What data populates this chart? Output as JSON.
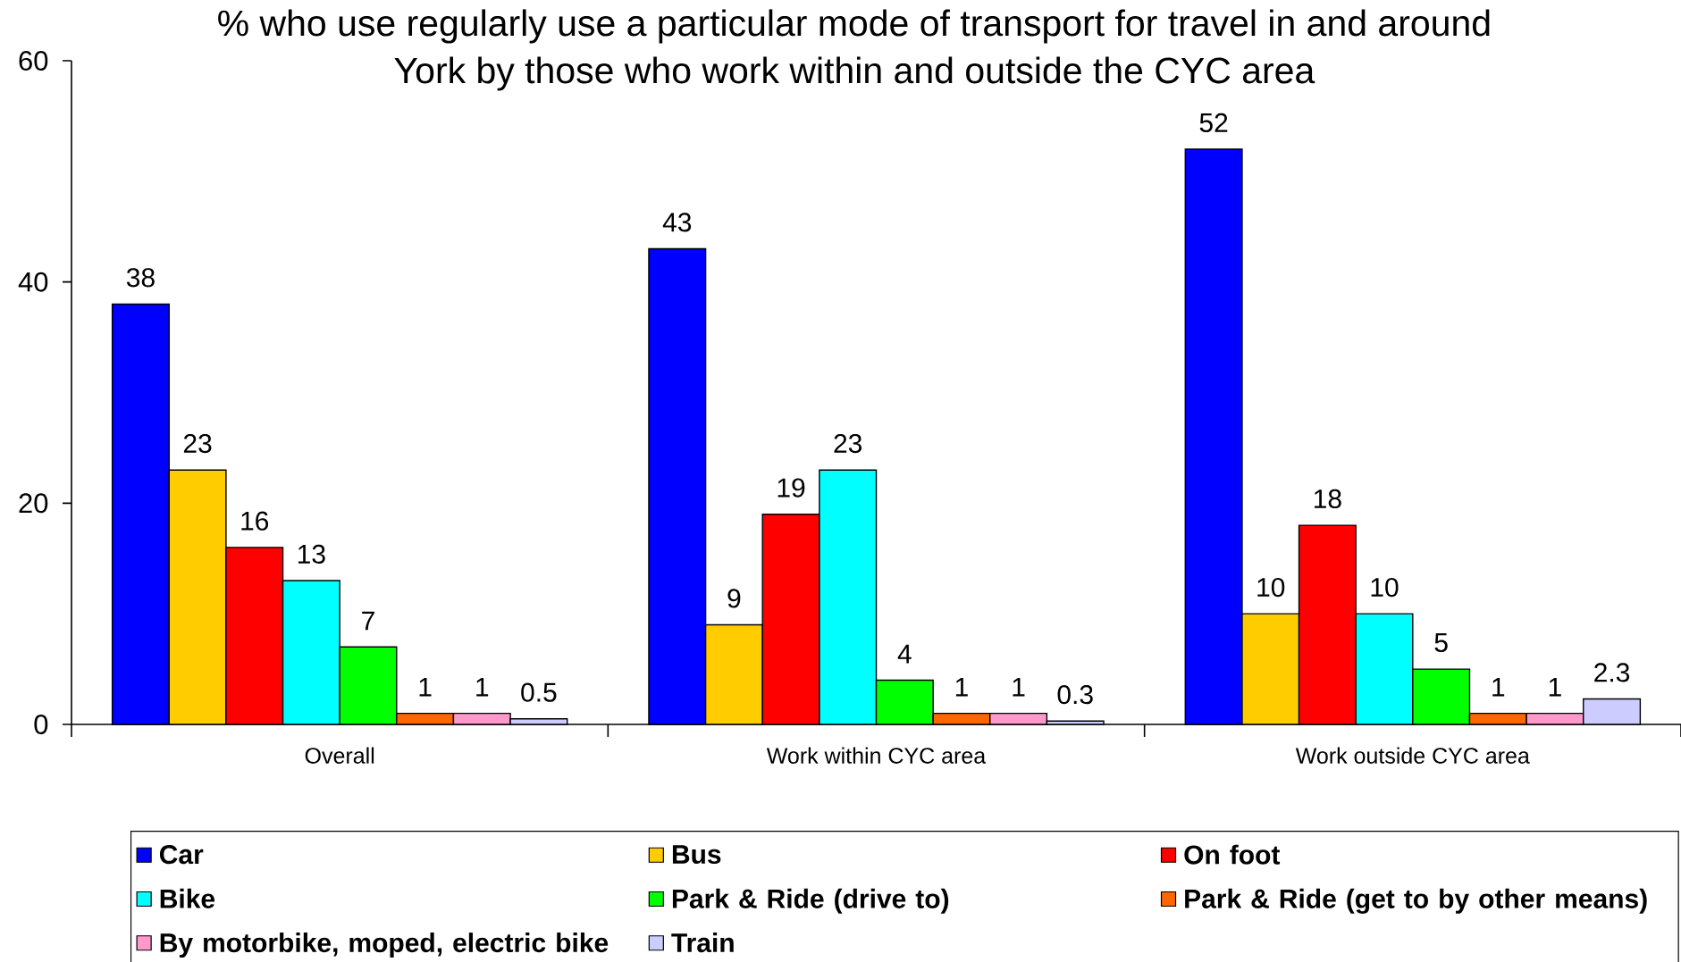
{
  "chart_data": {
    "type": "bar",
    "title": "% who use regularly use a particular mode of transport for travel in and around York by those who work within and outside the CYC area",
    "categories": [
      "Overall",
      "Work within CYC area",
      "Work outside CYC area"
    ],
    "series": [
      {
        "name": "Car",
        "color": "#0000ff",
        "values": [
          38,
          43,
          52
        ]
      },
      {
        "name": "Bus",
        "color": "#ffcc00",
        "values": [
          23,
          9,
          10
        ]
      },
      {
        "name": "On foot",
        "color": "#ff0000",
        "values": [
          16,
          19,
          18
        ]
      },
      {
        "name": "Bike",
        "color": "#00ffff",
        "values": [
          13,
          23,
          10
        ]
      },
      {
        "name": "Park & Ride (drive to)",
        "color": "#00ff00",
        "values": [
          7,
          4,
          5
        ]
      },
      {
        "name": "Park & Ride (get to by other means)",
        "color": "#ff6600",
        "values": [
          1,
          1,
          1
        ]
      },
      {
        "name": "By motorbike, moped, electric bike",
        "color": "#ff99cc",
        "values": [
          1,
          1,
          1
        ]
      },
      {
        "name": "Train",
        "color": "#ccccff",
        "values": [
          0.5,
          0.3,
          2.3
        ]
      }
    ],
    "ylim": [
      0,
      60
    ],
    "yticks": [
      0,
      20,
      40,
      60
    ],
    "data_labels": true,
    "legend": "bottom"
  }
}
